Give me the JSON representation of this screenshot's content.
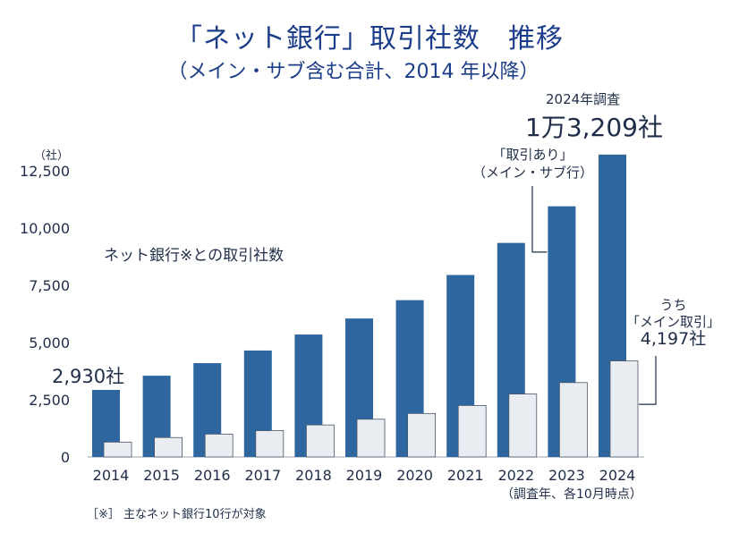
{
  "title": "「ネット銀行」取引社数　推移",
  "subtitle": "（メイン・サブ含む合計、2014 年以降）",
  "chart_data": {
    "type": "bar",
    "categories": [
      "2014",
      "2015",
      "2016",
      "2017",
      "2018",
      "2019",
      "2020",
      "2021",
      "2022",
      "2023",
      "2024"
    ],
    "series": [
      {
        "name": "「取引あり」（メイン・サブ行）",
        "color": "#2e67a0",
        "values": [
          2930,
          3550,
          4100,
          4650,
          5350,
          6050,
          6850,
          7950,
          9350,
          10950,
          13209
        ]
      },
      {
        "name": "うち「メイン取引」",
        "color": "#e9ecf1",
        "values": [
          650,
          850,
          1000,
          1150,
          1400,
          1650,
          1900,
          2250,
          2750,
          3250,
          4197
        ]
      }
    ],
    "ylim": [
      0,
      12500
    ],
    "yticks": [
      "0",
      "2,500",
      "5,000",
      "7,500",
      "10,000",
      "12,500"
    ],
    "yunit": "（社）",
    "series_label": "ネット銀行※との取引社数",
    "first_value_label": "2,930社",
    "survey_year_label": "2024年調査",
    "survey_total_label": "1万3,209社",
    "annotation_all": [
      "「取引あり」",
      "（メイン・サブ行）"
    ],
    "annotation_main": [
      "うち",
      "「メイン取引」",
      "4,197社"
    ],
    "x_note": "（調査年、各10月時点）",
    "footnote": "［※］ 主なネット銀行10行が対象"
  }
}
